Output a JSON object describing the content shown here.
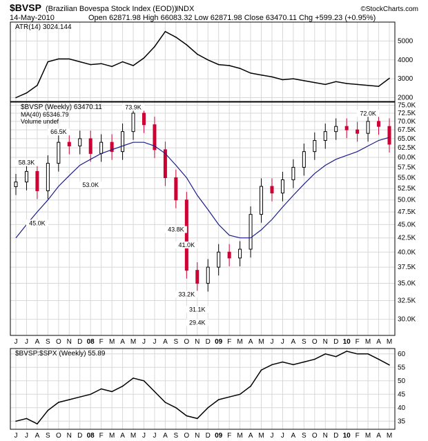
{
  "header": {
    "symbol": "$BVSP",
    "description": "(Brazilian Bovespa Stock Index (EOD))",
    "exchange": "INDX",
    "date": "14-May-2010",
    "ohlc": "Open 62871.98  High 66083.32  Low 62871.98  Close 63470.11  Chg +599.23 (+0.95%)",
    "brand": "©StockCharts.com"
  },
  "colors": {
    "up": "#000000",
    "down": "#cc0033",
    "ma": "#1a1a8c",
    "line": "#000000"
  },
  "chart_data": [
    {
      "type": "line",
      "panel": "indicator-top",
      "legend": "ATR(14) 3024.144",
      "x": [
        "2007-06",
        "2007-07",
        "2007-08",
        "2007-09",
        "2007-10",
        "2007-11",
        "2007-12",
        "2008-01",
        "2008-02",
        "2008-03",
        "2008-04",
        "2008-05",
        "2008-06",
        "2008-07",
        "2008-08",
        "2008-09",
        "2008-10",
        "2008-11",
        "2008-12",
        "2009-01",
        "2009-02",
        "2009-03",
        "2009-04",
        "2009-05",
        "2009-06",
        "2009-07",
        "2009-08",
        "2009-09",
        "2009-10",
        "2009-11",
        "2009-12",
        "2010-01",
        "2010-02",
        "2010-03",
        "2010-04",
        "2010-05"
      ],
      "values": [
        2000,
        2250,
        2650,
        3900,
        4050,
        4050,
        3900,
        3750,
        3800,
        3650,
        3900,
        3700,
        4100,
        4700,
        5500,
        5200,
        4800,
        4300,
        4000,
        3750,
        3700,
        3550,
        3300,
        3200,
        3100,
        2950,
        3000,
        2900,
        2800,
        2700,
        2850,
        2750,
        2700,
        2650,
        2600,
        3024
      ],
      "yticks": [
        2000,
        3000,
        4000,
        5000
      ],
      "ylim": [
        1800,
        6000
      ]
    },
    {
      "type": "candlestick",
      "panel": "price",
      "legend": [
        "$BVSP (Weekly) 63470.11",
        "MA(40) 65346.79",
        "Volume undef"
      ],
      "x": [
        "2007-06",
        "2007-07",
        "2007-08",
        "2007-09",
        "2007-10",
        "2007-11",
        "2007-12",
        "2008-01",
        "2008-02",
        "2008-03",
        "2008-04",
        "2008-05",
        "2008-06",
        "2008-07",
        "2008-08",
        "2008-09",
        "2008-10",
        "2008-11",
        "2008-12",
        "2009-01",
        "2009-02",
        "2009-03",
        "2009-04",
        "2009-05",
        "2009-06",
        "2009-07",
        "2009-08",
        "2009-09",
        "2009-10",
        "2009-11",
        "2009-12",
        "2010-01",
        "2010-02",
        "2010-03",
        "2010-04",
        "2010-05"
      ],
      "close": [
        54000,
        56500,
        52000,
        58500,
        64000,
        63000,
        65000,
        61000,
        64000,
        61500,
        67000,
        72500,
        69000,
        62000,
        55000,
        50000,
        37000,
        35000,
        37500,
        40000,
        39000,
        40500,
        47000,
        53000,
        51500,
        54500,
        57500,
        61500,
        64500,
        67000,
        68500,
        67500,
        66500,
        70000,
        68500,
        63470
      ],
      "ma": [
        42500,
        45000,
        47500,
        50000,
        53000,
        55500,
        58000,
        59500,
        61000,
        62000,
        63000,
        64000,
        64000,
        63000,
        61000,
        58000,
        55000,
        51000,
        48000,
        45000,
        43000,
        42500,
        42500,
        44000,
        46000,
        48500,
        51000,
        53500,
        56000,
        58000,
        59500,
        60500,
        61500,
        63000,
        64500,
        65346
      ],
      "annotations": [
        {
          "x": "2007-07",
          "value": 58300,
          "label": "58.3K"
        },
        {
          "x": "2007-08",
          "value": 45000,
          "label": "45.0K"
        },
        {
          "x": "2007-10",
          "value": 66500,
          "label": "66.5K"
        },
        {
          "x": "2008-01",
          "value": 53000,
          "label": "53.0K"
        },
        {
          "x": "2008-05",
          "value": 73900,
          "label": "73.9K"
        },
        {
          "x": "2008-09",
          "value": 43800,
          "label": "43.8K"
        },
        {
          "x": "2008-10",
          "value": 41000,
          "label": "41.0K"
        },
        {
          "x": "2008-10",
          "value": 33200,
          "label": "33.2K"
        },
        {
          "x": "2008-11",
          "value": 31100,
          "label": "31.1K"
        },
        {
          "x": "2008-11",
          "value": 29400,
          "label": "29.4K"
        },
        {
          "x": "2010-03",
          "value": 72000,
          "label": "72.0K"
        }
      ],
      "yticks": [
        30000,
        32500,
        35000,
        37500,
        40000,
        42500,
        45000,
        47500,
        50000,
        52500,
        55000,
        57500,
        60000,
        62500,
        65000,
        67500,
        70000,
        72500,
        75000
      ],
      "ytick_labels": [
        "30.0K",
        "32.5K",
        "35.0K",
        "37.5K",
        "40.0K",
        "42.5K",
        "45.0K",
        "47.5K",
        "50.0K",
        "52.5K",
        "55.0K",
        "57.5K",
        "60.0K",
        "62.5K",
        "65.0K",
        "67.5K",
        "70.0K",
        "72.5K",
        "75.0K"
      ],
      "ylim": [
        28000,
        76000
      ],
      "scale": "log"
    },
    {
      "type": "line",
      "panel": "indicator-bottom",
      "legend": "$BVSP:$SPX (Weekly) 55.89",
      "x": [
        "2007-06",
        "2007-07",
        "2007-08",
        "2007-09",
        "2007-10",
        "2007-11",
        "2007-12",
        "2008-01",
        "2008-02",
        "2008-03",
        "2008-04",
        "2008-05",
        "2008-06",
        "2008-07",
        "2008-08",
        "2008-09",
        "2008-10",
        "2008-11",
        "2008-12",
        "2009-01",
        "2009-02",
        "2009-03",
        "2009-04",
        "2009-05",
        "2009-06",
        "2009-07",
        "2009-08",
        "2009-09",
        "2009-10",
        "2009-11",
        "2009-12",
        "2010-01",
        "2010-02",
        "2010-03",
        "2010-04",
        "2010-05"
      ],
      "values": [
        35,
        36,
        34,
        39,
        42,
        43,
        44,
        45,
        47,
        46,
        48,
        51,
        50,
        46,
        42,
        40,
        37,
        36,
        40,
        43,
        44,
        45,
        48,
        54,
        56,
        57,
        56,
        57,
        58,
        60,
        59,
        61,
        60,
        60,
        58,
        55.89
      ],
      "yticks": [
        35,
        40,
        45,
        50,
        55,
        60
      ],
      "ylim": [
        32,
        62
      ]
    }
  ],
  "x_axis": {
    "months": [
      {
        "label": "J",
        "bold": false
      },
      {
        "label": "J",
        "bold": false
      },
      {
        "label": "A",
        "bold": false
      },
      {
        "label": "S",
        "bold": false
      },
      {
        "label": "O",
        "bold": false
      },
      {
        "label": "N",
        "bold": false
      },
      {
        "label": "D",
        "bold": false
      },
      {
        "label": "08",
        "bold": true
      },
      {
        "label": "F",
        "bold": false
      },
      {
        "label": "M",
        "bold": false
      },
      {
        "label": "A",
        "bold": false
      },
      {
        "label": "M",
        "bold": false
      },
      {
        "label": "J",
        "bold": false
      },
      {
        "label": "J",
        "bold": false
      },
      {
        "label": "A",
        "bold": false
      },
      {
        "label": "S",
        "bold": false
      },
      {
        "label": "O",
        "bold": false
      },
      {
        "label": "N",
        "bold": false
      },
      {
        "label": "D",
        "bold": false
      },
      {
        "label": "09",
        "bold": true
      },
      {
        "label": "F",
        "bold": false
      },
      {
        "label": "M",
        "bold": false
      },
      {
        "label": "A",
        "bold": false
      },
      {
        "label": "M",
        "bold": false
      },
      {
        "label": "J",
        "bold": false
      },
      {
        "label": "J",
        "bold": false
      },
      {
        "label": "A",
        "bold": false
      },
      {
        "label": "S",
        "bold": false
      },
      {
        "label": "O",
        "bold": false
      },
      {
        "label": "N",
        "bold": false
      },
      {
        "label": "D",
        "bold": false
      },
      {
        "label": "10",
        "bold": true
      },
      {
        "label": "F",
        "bold": false
      },
      {
        "label": "M",
        "bold": false
      },
      {
        "label": "A",
        "bold": false
      },
      {
        "label": "M",
        "bold": false
      }
    ]
  }
}
